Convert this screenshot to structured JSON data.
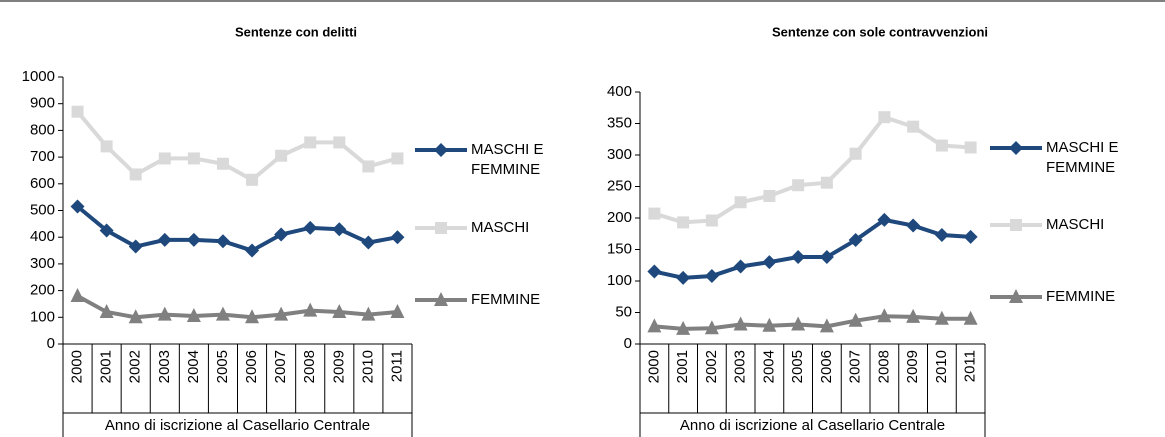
{
  "chart_data": [
    {
      "type": "line",
      "title": "Sentenze con delitti",
      "x_label": "Anno di iscrizione al Casellario Centrale",
      "categories": [
        "2000",
        "2001",
        "2002",
        "2003",
        "2004",
        "2005",
        "2006",
        "2007",
        "2008",
        "2009",
        "2010",
        "2011"
      ],
      "ylim": [
        0,
        1000
      ],
      "yticks": [
        0,
        100,
        200,
        300,
        400,
        500,
        600,
        700,
        800,
        900,
        1000
      ],
      "grid": false,
      "legend": "right",
      "series": [
        {
          "name": "MASCHI E FEMMINE",
          "color": "#1f497d",
          "marker": "diamond",
          "values": [
            515,
            425,
            365,
            390,
            390,
            385,
            350,
            410,
            435,
            430,
            380,
            400
          ]
        },
        {
          "name": "MASCHI",
          "color": "#d9d9d9",
          "marker": "square",
          "values": [
            870,
            740,
            635,
            695,
            695,
            675,
            615,
            705,
            755,
            755,
            665,
            695
          ]
        },
        {
          "name": "FEMMINE",
          "color": "#808080",
          "marker": "triangle",
          "values": [
            180,
            120,
            100,
            110,
            105,
            110,
            100,
            110,
            125,
            120,
            110,
            120
          ]
        }
      ]
    },
    {
      "type": "line",
      "title": "Sentenze con sole contravvenzioni",
      "x_label": "Anno di iscrizione al Casellario Centrale",
      "categories": [
        "2000",
        "2001",
        "2002",
        "2003",
        "2004",
        "2005",
        "2006",
        "2007",
        "2008",
        "2009",
        "2010",
        "2011"
      ],
      "ylim": [
        0,
        400
      ],
      "yticks": [
        0,
        50,
        100,
        150,
        200,
        250,
        300,
        350,
        400
      ],
      "grid": false,
      "legend": "right",
      "series": [
        {
          "name": "MASCHI E FEMMINE",
          "color": "#1f497d",
          "marker": "diamond",
          "values": [
            115,
            105,
            108,
            123,
            130,
            138,
            138,
            165,
            197,
            188,
            173,
            170
          ]
        },
        {
          "name": "MASCHI",
          "color": "#d9d9d9",
          "marker": "square",
          "values": [
            207,
            193,
            196,
            225,
            235,
            252,
            256,
            302,
            360,
            345,
            315,
            312
          ]
        },
        {
          "name": "FEMMINE",
          "color": "#808080",
          "marker": "triangle",
          "values": [
            28,
            24,
            25,
            31,
            29,
            31,
            28,
            37,
            44,
            43,
            40,
            40
          ]
        }
      ]
    }
  ]
}
